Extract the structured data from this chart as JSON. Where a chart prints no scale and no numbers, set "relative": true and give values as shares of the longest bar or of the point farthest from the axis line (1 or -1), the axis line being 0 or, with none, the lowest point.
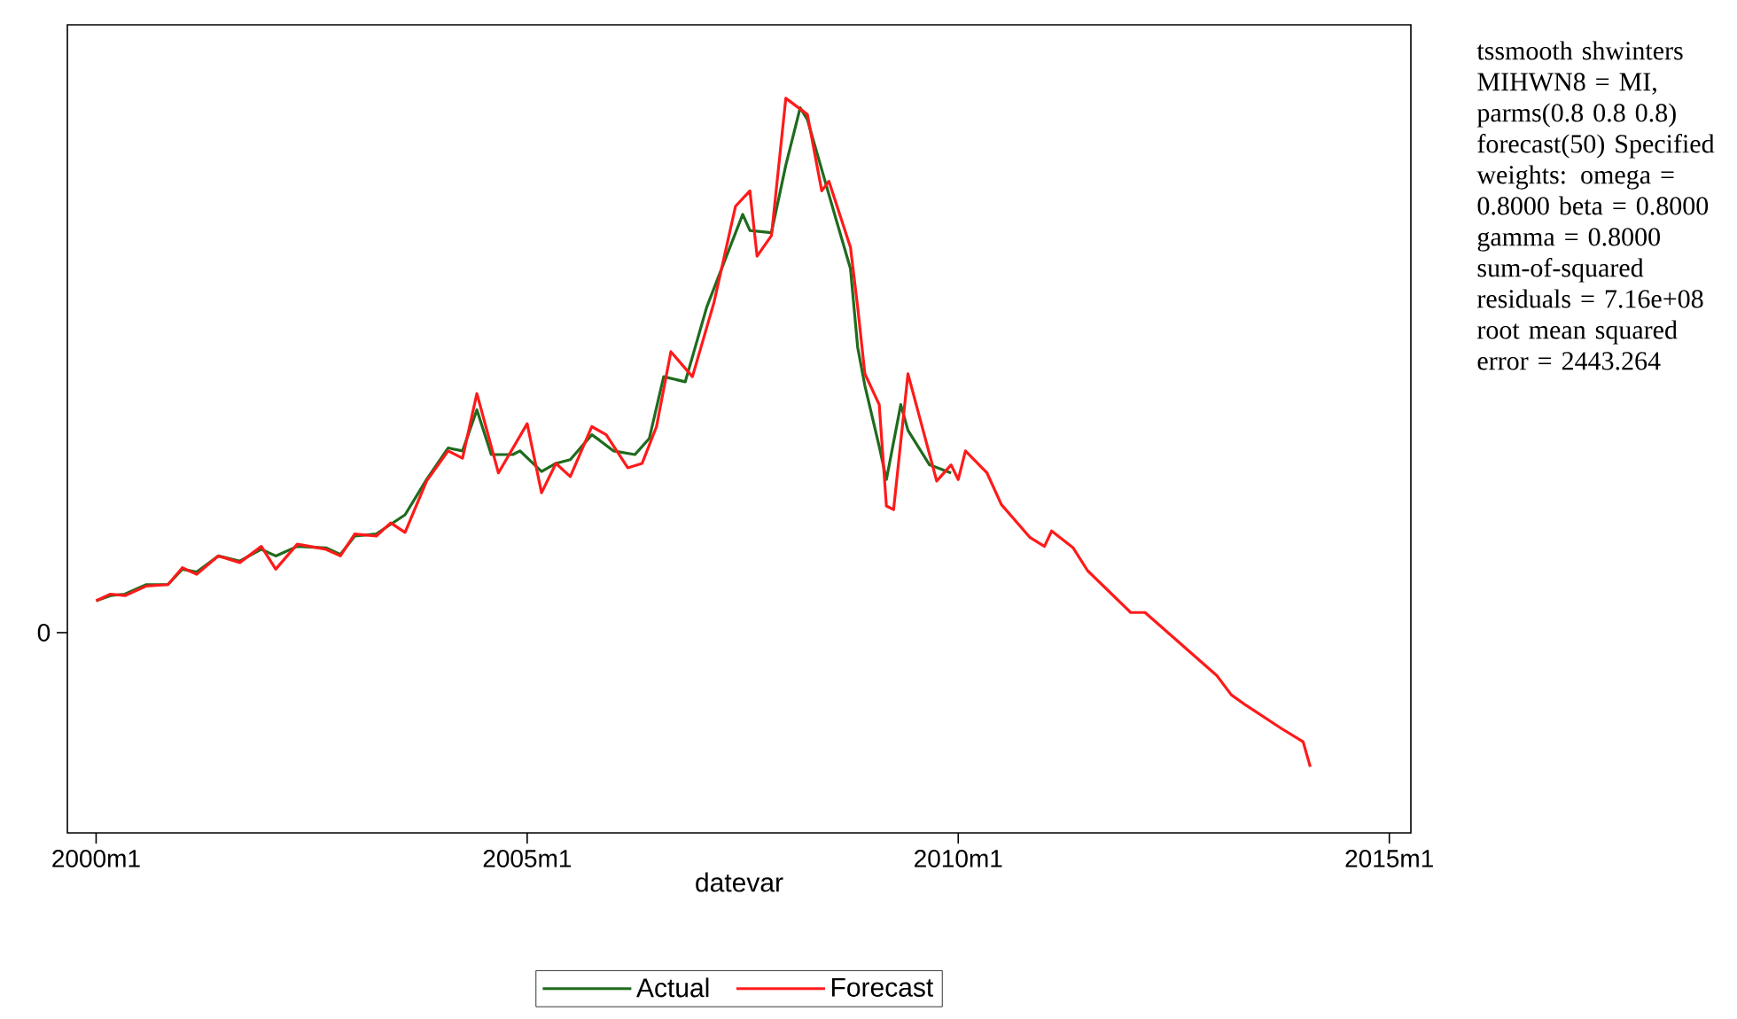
{
  "chart_data": {
    "type": "line",
    "relative": true,
    "xlabel": "datevar",
    "xlim": [
      "1999-09",
      "2015-04"
    ],
    "xticks": [
      {
        "value": "2000-01",
        "label": "2000m1"
      },
      {
        "value": "2005-01",
        "label": "2005m1"
      },
      {
        "value": "2010-01",
        "label": "2010m1"
      },
      {
        "value": "2015-01",
        "label": "2015m1"
      }
    ],
    "grid": false,
    "legend": "bottom",
    "marker": "none",
    "line_style": "solid",
    "annotations": [
      "0",
      "tssmooth shwinters MIHWN8 = MI, parms(0.8 0.8 0.8) forecast(50) Specified weights: omega = 0.8000 beta = 0.8000 gamma = 0.8000 sum-of-squared residuals = 7.16e+08 root mean squared error = 2443.264"
    ],
    "series": [
      {
        "name": "Actual",
        "color": "#1e6b1e",
        "x": [
          "2000-01",
          "2000-03",
          "2000-05",
          "2000-08",
          "2000-11",
          "2001-01",
          "2001-03",
          "2001-06",
          "2001-09",
          "2001-12",
          "2002-02",
          "2002-05",
          "2002-09",
          "2002-11",
          "2003-01",
          "2003-04",
          "2003-06",
          "2003-08",
          "2003-11",
          "2004-02",
          "2004-04",
          "2004-06",
          "2004-08",
          "2004-11",
          "2004-12",
          "2005-03",
          "2005-05",
          "2005-07",
          "2005-10",
          "2005-11",
          "2006-01",
          "2006-04",
          "2006-06",
          "2006-08",
          "2006-11",
          "2007-02",
          "2007-07",
          "2007-08",
          "2007-11",
          "2008-01",
          "2008-03",
          "2008-04",
          "2008-06",
          "2008-08",
          "2008-10",
          "2008-11",
          "2008-12",
          "2009-02",
          "2009-03",
          "2009-05",
          "2009-06",
          "2009-09",
          "2009-12"
        ],
        "values": [
          0.316,
          0.323,
          0.325,
          0.338,
          0.338,
          0.359,
          0.355,
          0.377,
          0.37,
          0.386,
          0.377,
          0.39,
          0.388,
          0.379,
          0.404,
          0.407,
          0.42,
          0.433,
          0.481,
          0.524,
          0.52,
          0.576,
          0.515,
          0.515,
          0.52,
          0.492,
          0.503,
          0.508,
          0.542,
          0.535,
          0.52,
          0.515,
          0.537,
          0.621,
          0.614,
          0.716,
          0.842,
          0.82,
          0.817,
          0.909,
          0.987,
          0.971,
          0.903,
          0.835,
          0.768,
          0.661,
          0.609,
          0.526,
          0.481,
          0.583,
          0.548,
          0.501,
          0.49
        ]
      },
      {
        "name": "Forecast",
        "color": "#ff1a1a",
        "x": [
          "2000-01",
          "2000-03",
          "2000-05",
          "2000-08",
          "2000-11",
          "2001-01",
          "2001-03",
          "2001-06",
          "2001-09",
          "2001-12",
          "2002-02",
          "2002-05",
          "2002-09",
          "2002-11",
          "2003-01",
          "2003-04",
          "2003-06",
          "2003-08",
          "2003-11",
          "2004-02",
          "2004-04",
          "2004-06",
          "2004-09",
          "2005-01",
          "2005-03",
          "2005-05",
          "2005-07",
          "2005-10",
          "2005-12",
          "2006-03",
          "2006-05",
          "2006-07",
          "2006-09",
          "2006-12",
          "2007-03",
          "2007-06",
          "2007-08",
          "2007-09",
          "2007-11",
          "2008-01",
          "2008-04",
          "2008-06",
          "2008-07",
          "2008-10",
          "2008-11",
          "2008-12",
          "2009-02",
          "2009-03",
          "2009-04",
          "2009-06",
          "2009-10",
          "2009-12",
          "2010-01",
          "2010-02",
          "2010-05",
          "2010-07",
          "2010-11",
          "2011-01",
          "2011-02",
          "2011-05",
          "2011-07",
          "2012-01",
          "2012-03",
          "2013-01",
          "2013-03",
          "2013-05",
          "2013-10",
          "2014-01",
          "2014-02"
        ],
        "values": [
          0.316,
          0.325,
          0.323,
          0.336,
          0.338,
          0.361,
          0.352,
          0.377,
          0.368,
          0.39,
          0.359,
          0.393,
          0.386,
          0.377,
          0.407,
          0.404,
          0.422,
          0.409,
          0.479,
          0.52,
          0.51,
          0.598,
          0.49,
          0.557,
          0.463,
          0.503,
          0.485,
          0.553,
          0.542,
          0.497,
          0.503,
          0.553,
          0.655,
          0.621,
          0.722,
          0.853,
          0.874,
          0.785,
          0.813,
          1.0,
          0.978,
          0.874,
          0.887,
          0.797,
          0.716,
          0.625,
          0.583,
          0.445,
          0.44,
          0.625,
          0.479,
          0.501,
          0.481,
          0.52,
          0.49,
          0.447,
          0.402,
          0.39,
          0.411,
          0.388,
          0.357,
          0.3,
          0.3,
          0.214,
          0.188,
          0.174,
          0.142,
          0.124,
          0.09
        ]
      }
    ]
  }
}
